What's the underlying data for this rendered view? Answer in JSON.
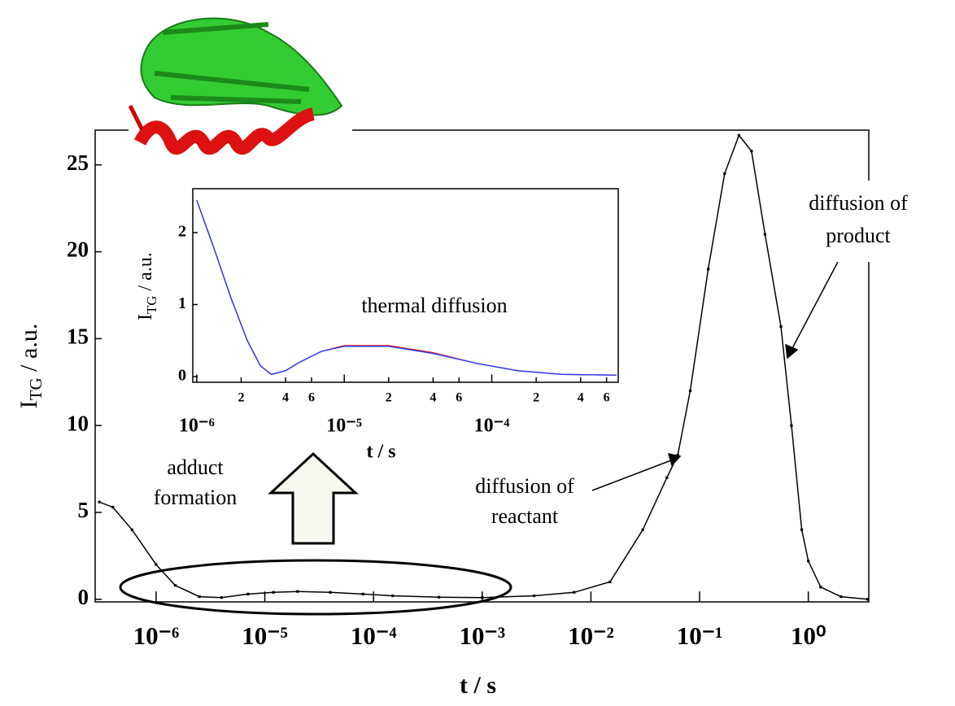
{
  "chart_data": [
    {
      "type": "line",
      "xlabel": "t / s",
      "ylabel": "I",
      "ylabel_sub": "TG",
      "ylabel_rest": " / a.u.",
      "xscale": "log",
      "xlim": [
        2.75e-07,
        3.6
      ],
      "ylim": [
        -0.15,
        27
      ],
      "xticks": [
        {
          "value": 1e-06,
          "label": "10⁻⁶"
        },
        {
          "value": 1e-05,
          "label": "10⁻⁵"
        },
        {
          "value": 0.0001,
          "label": "10⁻⁴"
        },
        {
          "value": 0.001,
          "label": "10⁻³"
        },
        {
          "value": 0.01,
          "label": "10⁻²"
        },
        {
          "value": 0.1,
          "label": "10⁻¹"
        },
        {
          "value": 1,
          "label": "10⁰"
        }
      ],
      "yticks": [
        0,
        5,
        10,
        15,
        20,
        25
      ],
      "x": [
        3e-07,
        4e-07,
        6e-07,
        1e-06,
        1.5e-06,
        2.5e-06,
        4e-06,
        7e-06,
        1.2e-05,
        2e-05,
        4e-05,
        8e-05,
        0.00015,
        0.0004,
        0.001,
        0.003,
        0.007,
        0.015,
        0.03,
        0.05,
        0.063,
        0.082,
        0.12,
        0.17,
        0.23,
        0.3,
        0.4,
        0.56,
        0.7,
        0.87,
        1.0,
        1.3,
        2,
        3.5
      ],
      "series": [
        {
          "color": "#000000",
          "values": [
            5.6,
            5.3,
            4.0,
            2.0,
            0.8,
            0.15,
            0.1,
            0.3,
            0.4,
            0.45,
            0.4,
            0.3,
            0.2,
            0.12,
            0.1,
            0.2,
            0.4,
            1.0,
            4.0,
            7.0,
            8.3,
            12,
            19,
            24.5,
            26.7,
            25.8,
            21,
            15.7,
            10,
            4,
            2.2,
            0.7,
            0.15,
            0.0
          ]
        }
      ],
      "annotations": [
        {
          "lines": [
            "diffusion of",
            "product"
          ]
        },
        {
          "lines": [
            "diffusion of",
            "reactant"
          ]
        },
        {
          "lines": [
            "adduct",
            "formation"
          ]
        }
      ]
    },
    {
      "type": "line",
      "xlabel": "t / s",
      "ylabel": "I",
      "ylabel_sub": "TG",
      "ylabel_rest": " / a.u.",
      "xscale": "log",
      "xlim": [
        9.4e-07,
        0.00072
      ],
      "ylim": [
        -0.08,
        2.61
      ],
      "xticks": [
        {
          "value": 1e-06,
          "label": "10⁻⁶"
        },
        {
          "value": 2e-06,
          "label": "2"
        },
        {
          "value": 4e-06,
          "label": "4"
        },
        {
          "value": 6e-06,
          "label": "6"
        },
        {
          "value": 1e-05,
          "label": "10⁻⁵"
        },
        {
          "value": 2e-05,
          "label": "2"
        },
        {
          "value": 4e-05,
          "label": "4"
        },
        {
          "value": 6e-05,
          "label": "6"
        },
        {
          "value": 0.0001,
          "label": "10⁻⁴"
        },
        {
          "value": 0.0002,
          "label": "2"
        },
        {
          "value": 0.0004,
          "label": "4"
        },
        {
          "value": 0.0006,
          "label": "6"
        }
      ],
      "yticks": [
        0,
        1,
        2
      ],
      "x": [
        1e-06,
        1.3e-06,
        1.7e-06,
        2.2e-06,
        2.7e-06,
        3.2e-06,
        4e-06,
        5e-06,
        7e-06,
        1e-05,
        2e-05,
        4e-05,
        8e-05,
        0.00015,
        0.0003,
        0.0007
      ],
      "series": [
        {
          "color": "#ff0000",
          "values": [
            2.45,
            1.8,
            1.1,
            0.5,
            0.15,
            0.03,
            0.08,
            0.2,
            0.35,
            0.43,
            0.43,
            0.33,
            0.18,
            0.08,
            0.03,
            0.02
          ]
        },
        {
          "color": "#2040ff",
          "values": [
            2.45,
            1.8,
            1.1,
            0.5,
            0.15,
            0.03,
            0.08,
            0.2,
            0.35,
            0.42,
            0.42,
            0.32,
            0.18,
            0.08,
            0.03,
            0.02
          ]
        }
      ],
      "annotations": [
        {
          "lines": [
            "thermal diffusion"
          ]
        }
      ]
    }
  ]
}
